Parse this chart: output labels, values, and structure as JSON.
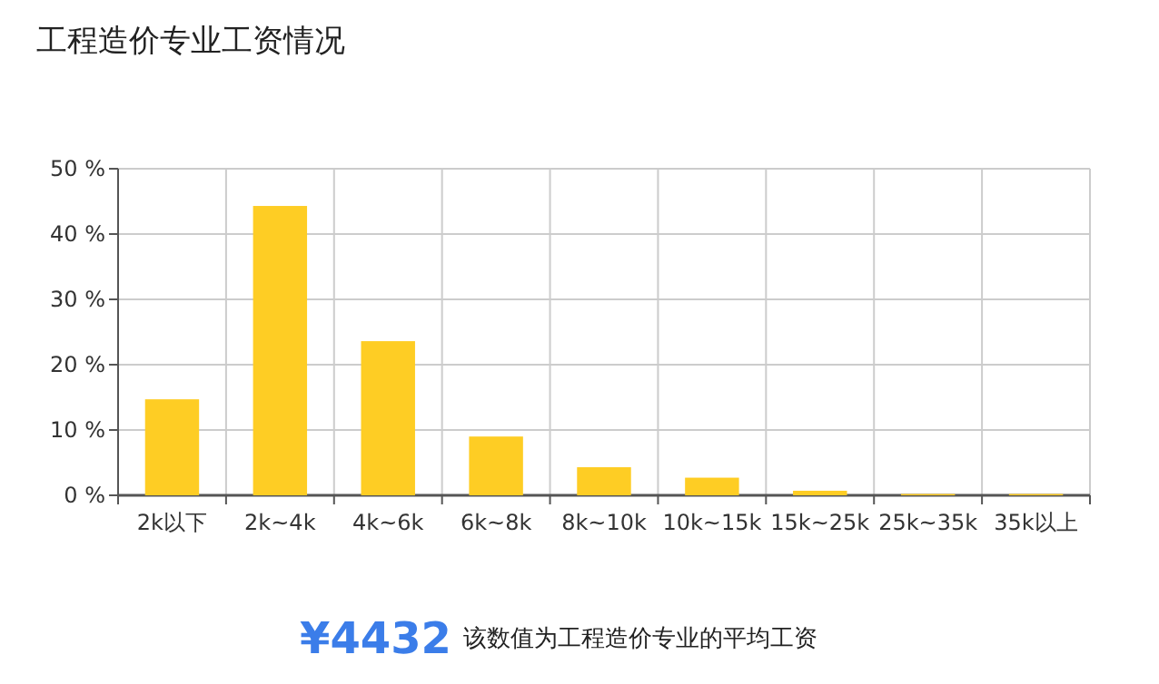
{
  "chart_data": {
    "type": "bar",
    "title": "工程造价专业工资情况",
    "categories": [
      "2k以下",
      "2k~4k",
      "4k~6k",
      "6k~8k",
      "8k~10k",
      "10k~15k",
      "15k~25k",
      "25k~35k",
      "35k以上"
    ],
    "values": [
      14.7,
      44.3,
      23.6,
      9.0,
      4.3,
      2.7,
      0.7,
      0.2,
      0.2
    ],
    "color": "#fecd24",
    "ylim": [
      0,
      50
    ],
    "yticks": [
      {
        "value": 0,
        "label": "0 %"
      },
      {
        "value": 10,
        "label": "10 %"
      },
      {
        "value": 20,
        "label": "20 %"
      },
      {
        "value": 30,
        "label": "30 %"
      },
      {
        "value": 40,
        "label": "40 %"
      },
      {
        "value": 50,
        "label": "50 %"
      }
    ],
    "grid": true,
    "annotations": [
      "¥4432",
      "该数值为工程造价专业的平均工资"
    ]
  }
}
